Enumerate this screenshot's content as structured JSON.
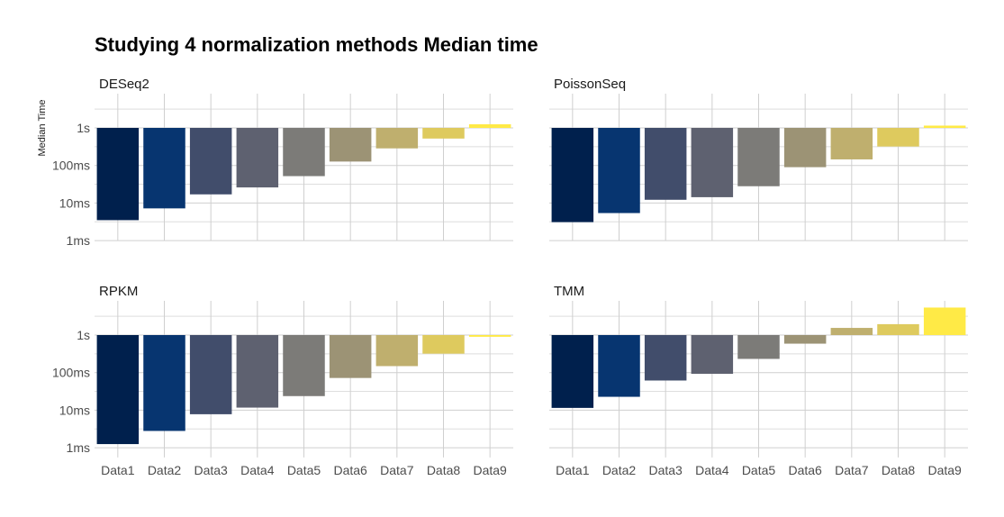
{
  "chart_data": {
    "type": "bar",
    "title": "Studying 4 normalization methods Median time",
    "ylabel": "Median Time",
    "xlabel": "",
    "y_scale": "log10",
    "y_baseline": "1s",
    "y_ticks": [
      {
        "label": "1s",
        "value": 1
      },
      {
        "label": "100ms",
        "value": 0.1
      },
      {
        "label": "10ms",
        "value": 0.01
      },
      {
        "label": "1ms",
        "value": 0.001
      }
    ],
    "ylim": [
      0.0006,
      3
    ],
    "categories": [
      "Data1",
      "Data2",
      "Data3",
      "Data4",
      "Data5",
      "Data6",
      "Data7",
      "Data8",
      "Data9"
    ],
    "colors": [
      "#00204D",
      "#073570",
      "#414D6B",
      "#5E6170",
      "#7C7B78",
      "#9C9375",
      "#BFAF6E",
      "#DECA5E",
      "#FFEA46"
    ],
    "grid": true,
    "legend": "none",
    "panels": [
      {
        "name": "DESeq2",
        "values_s": [
          0.0035,
          0.0072,
          0.017,
          0.026,
          0.052,
          0.127,
          0.285,
          0.52,
          1.25
        ]
      },
      {
        "name": "PoissonSeq",
        "values_s": [
          0.0031,
          0.0054,
          0.0122,
          0.0143,
          0.028,
          0.09,
          0.145,
          0.32,
          1.15
        ]
      },
      {
        "name": "RPKM",
        "values_s": [
          0.00125,
          0.0028,
          0.0078,
          0.0117,
          0.0237,
          0.072,
          0.149,
          0.32,
          0.9
        ]
      },
      {
        "name": "TMM",
        "values_s": [
          0.0115,
          0.0227,
          0.0616,
          0.0929,
          0.232,
          0.59,
          1.55,
          1.95,
          5.4
        ]
      }
    ]
  }
}
